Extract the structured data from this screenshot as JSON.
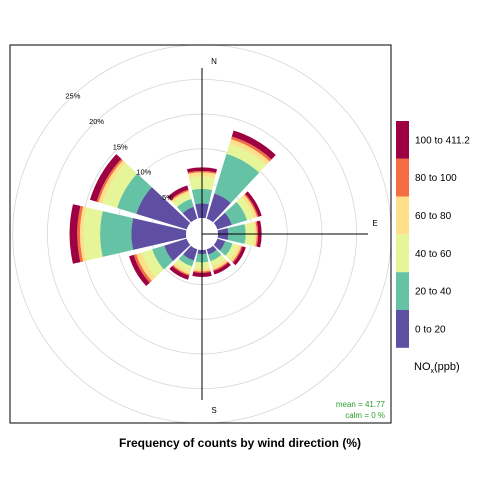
{
  "chart_data": {
    "type": "windrose",
    "title": "Frequency of counts by wind direction (%)",
    "radial_unit_suffix": "%",
    "radial_ticks": [
      5,
      10,
      15,
      20,
      25
    ],
    "radial_max": 25,
    "directions": [
      0,
      30,
      60,
      90,
      120,
      150,
      180,
      210,
      240,
      270,
      300,
      330
    ],
    "compass_labels": {
      "N": "N",
      "E": "E",
      "S": "S"
    },
    "bins": [
      {
        "label": "0 to 20",
        "color": "#5e4fa2"
      },
      {
        "label": "20 to 40",
        "color": "#66c2a5"
      },
      {
        "label": "40 to 60",
        "color": "#e6f598"
      },
      {
        "label": "60 to 80",
        "color": "#fee08b"
      },
      {
        "label": "80 to 100",
        "color": "#f46d43"
      },
      {
        "label": "100 to 411.2",
        "color": "#9e0142"
      }
    ],
    "cumulative_percent": [
      [
        2.1,
        4.2,
        6.0,
        6.6,
        6.8,
        7.3
      ],
      [
        3.8,
        9.8,
        11.3,
        12.0,
        12.4,
        13.3
      ],
      [
        2.2,
        4.5,
        5.5,
        6.0,
        6.2,
        6.7
      ],
      [
        1.5,
        4.0,
        5.2,
        5.6,
        5.8,
        6.3
      ],
      [
        1.2,
        2.3,
        3.1,
        3.6,
        3.8,
        4.3
      ],
      [
        0.8,
        1.8,
        2.6,
        3.1,
        3.3,
        3.8
      ],
      [
        0.6,
        1.8,
        2.7,
        3.1,
        3.3,
        3.9
      ],
      [
        1.7,
        2.6,
        3.4,
        3.8,
        4.0,
        4.6
      ],
      [
        3.4,
        5.2,
        6.8,
        7.6,
        8.0,
        8.7
      ],
      [
        7.9,
        12.4,
        14.8,
        15.3,
        15.7,
        16.8
      ],
      [
        7.6,
        10.5,
        12.7,
        13.3,
        13.6,
        14.6
      ],
      [
        1.8,
        3.0,
        3.8,
        4.2,
        4.4,
        5.0
      ]
    ],
    "legend_title_main": "NO",
    "legend_title_sub": "x",
    "legend_title_unit": "(ppb)",
    "legend_position": "right",
    "annotation_mean": "mean = 41.77",
    "annotation_calm": "calm = 0 %",
    "annotation_color": "#2ca02c",
    "grid_color": "#d6d6d6",
    "grid": true
  }
}
